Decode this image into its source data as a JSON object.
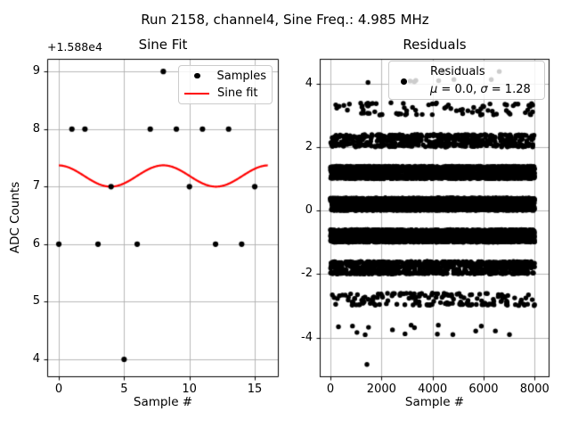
{
  "figure_title": "Run 2158, channel4, Sine Freq.: 4.985 MHz",
  "style": {
    "background": "#ffffff",
    "grid_color": "#b0b0b0",
    "spine_color": "#000000",
    "marker_color": "#000000",
    "fit_line_color": "#ff0000",
    "legend_border_color": "#cccccc"
  },
  "chart_data": [
    {
      "type": "scatter",
      "title": "Sine Fit",
      "xlabel": "Sample #",
      "ylabel": "ADC Counts",
      "y_offset_text": "+1.588e4",
      "xlim": [
        -0.89,
        16.84
      ],
      "ylim": [
        3.69,
        9.22
      ],
      "xticks": [
        0,
        5,
        10,
        15
      ],
      "yticks": [
        4,
        5,
        6,
        7,
        8,
        9
      ],
      "grid": true,
      "samples": {
        "x": [
          0,
          1,
          2,
          3,
          4,
          5,
          6,
          7,
          8,
          9,
          10,
          11,
          12,
          13,
          14,
          15
        ],
        "y": [
          6,
          8,
          8,
          6,
          7,
          4,
          6,
          8,
          9,
          8,
          7,
          8,
          6,
          8,
          6,
          7
        ],
        "marker_radius": 3.1
      },
      "sine_fit": {
        "mean": 7.185,
        "amplitude": 0.185,
        "period": 8.065,
        "x_peak": 8.0,
        "x_start": 0,
        "x_end": 16.0,
        "line_width": 2.2
      },
      "legend": {
        "entries": [
          {
            "label": "Samples",
            "marker": "dot"
          },
          {
            "label": "Sine fit",
            "marker": "line"
          }
        ]
      }
    },
    {
      "type": "scatter",
      "title": "Residuals",
      "xlabel": "Sample #",
      "xlim": [
        -420,
        8583
      ],
      "ylim": [
        -5.25,
        4.78
      ],
      "xticks": [
        0,
        2000,
        4000,
        6000,
        8000
      ],
      "yticks": [
        -4,
        -2,
        0,
        2,
        4
      ],
      "grid": true,
      "marker_radius": 2.7,
      "legend": {
        "label": "Residuals",
        "stats_mu_symbol": "μ",
        "stats_mu_rest": " = 0.0, ",
        "stats_sigma_symbol": "σ",
        "stats_sigma_rest": " = 1.28"
      },
      "residual_bands": {
        "n_total_samples": 8000,
        "x_range": [
          0,
          8000
        ],
        "center_offset": 0.2,
        "wobble_amplitude": 0.185,
        "wobble_period": 8.065,
        "levels": [
          {
            "level": 4,
            "count": 9
          },
          {
            "level": 3,
            "count": 85
          },
          {
            "level": 2,
            "count": 470
          },
          {
            "level": 1,
            "count": 1650
          },
          {
            "level": 0,
            "count": 2350
          },
          {
            "level": -1,
            "count": 1950
          },
          {
            "level": -2,
            "count": 780
          },
          {
            "level": -3,
            "count": 165
          },
          {
            "level": -4,
            "count": 16
          }
        ],
        "outliers": [
          {
            "x": 1430,
            "y": -4.85
          }
        ]
      }
    }
  ]
}
